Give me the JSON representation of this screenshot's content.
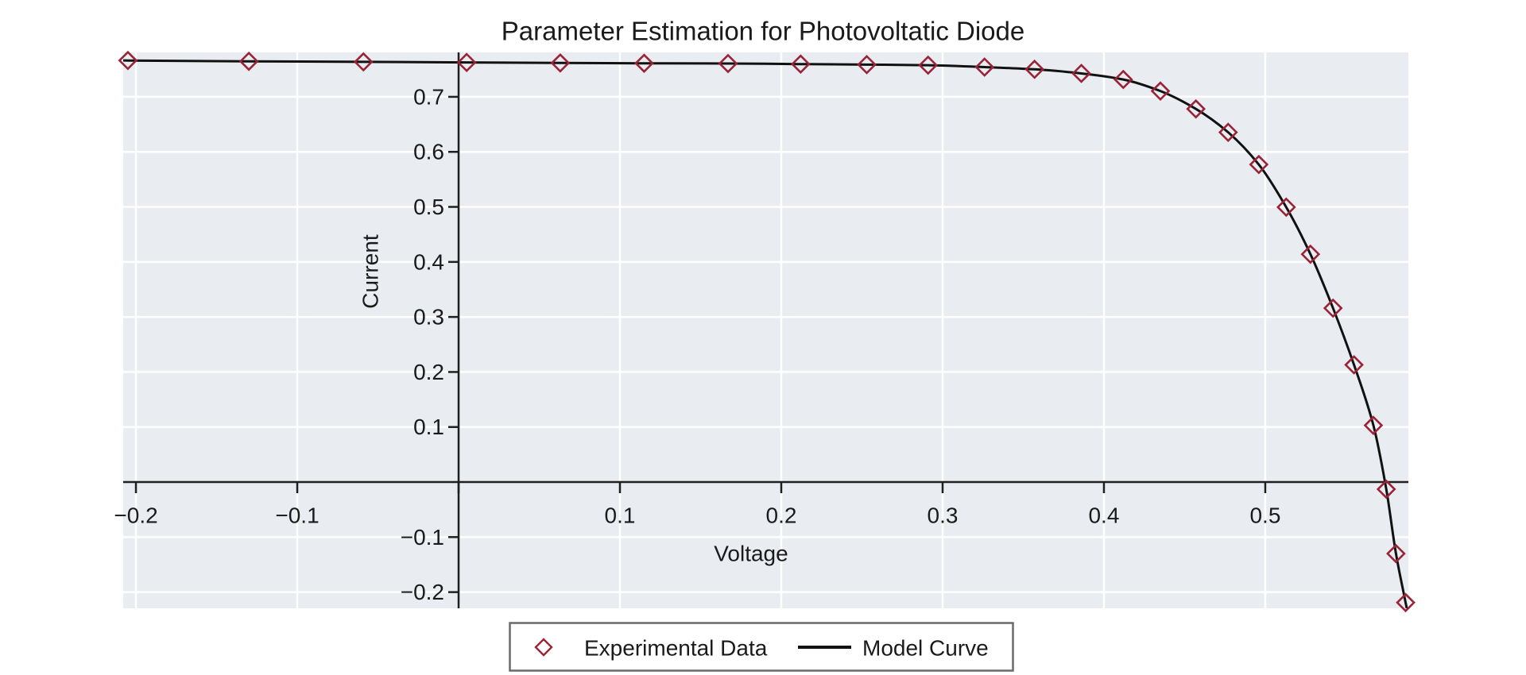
{
  "title": "Parameter Estimation for Photovoltatic Diode",
  "axes": {
    "xlabel": "Voltage",
    "ylabel": "Current"
  },
  "legend": {
    "experimental_label": "Experimental Data",
    "model_label": "Model Curve"
  },
  "colors": {
    "figure_background": "#ffffff",
    "plot_background": "#e9edf1",
    "gridline": "#ffffff",
    "spine": "#1f1f1f",
    "text": "#1a1a1a",
    "marker": "#992437",
    "curve": "#111111",
    "legend_border": "#6a6a6a",
    "legend_background": "#ffffff"
  },
  "chart_data": {
    "type": "scatter",
    "title": "Parameter Estimation for Photovoltatic Diode",
    "xlabel": "Voltage",
    "ylabel": "Current",
    "xlim": [
      -0.2079,
      0.5887
    ],
    "ylim": [
      -0.2294,
      0.7807
    ],
    "grid": true,
    "legend_position": "bottom-center",
    "x_ticks": [
      {
        "v": -0.2,
        "label": "−0.2"
      },
      {
        "v": -0.1,
        "label": "−0.1"
      },
      {
        "v": 0.0,
        "label": ""
      },
      {
        "v": 0.1,
        "label": "0.1"
      },
      {
        "v": 0.2,
        "label": "0.2"
      },
      {
        "v": 0.3,
        "label": "0.3"
      },
      {
        "v": 0.4,
        "label": "0.4"
      },
      {
        "v": 0.5,
        "label": "0.5"
      }
    ],
    "y_ticks": [
      {
        "v": 0.7,
        "label": "0.7"
      },
      {
        "v": 0.6,
        "label": "0.6"
      },
      {
        "v": 0.5,
        "label": "0.5"
      },
      {
        "v": 0.4,
        "label": "0.4"
      },
      {
        "v": 0.3,
        "label": "0.3"
      },
      {
        "v": 0.2,
        "label": "0.2"
      },
      {
        "v": 0.1,
        "label": "0.1"
      },
      {
        "v": -0.1,
        "label": "−0.1"
      },
      {
        "v": -0.2,
        "label": "−0.2"
      }
    ],
    "series": [
      {
        "name": "Experimental Data",
        "type": "scatter",
        "marker": "open-diamond",
        "color": "#992437",
        "points": [
          [
            -0.205,
            0.766
          ],
          [
            -0.13,
            0.7645
          ],
          [
            -0.059,
            0.7635
          ],
          [
            0.005,
            0.7625
          ],
          [
            0.063,
            0.7615
          ],
          [
            0.115,
            0.761
          ],
          [
            0.167,
            0.7605
          ],
          [
            0.212,
            0.7595
          ],
          [
            0.253,
            0.7585
          ],
          [
            0.291,
            0.7575
          ],
          [
            0.326,
            0.754
          ],
          [
            0.357,
            0.75
          ],
          [
            0.386,
            0.7425
          ],
          [
            0.412,
            0.7315
          ],
          [
            0.435,
            0.7105
          ],
          [
            0.457,
            0.678
          ],
          [
            0.477,
            0.6355
          ],
          [
            0.496,
            0.577
          ],
          [
            0.513,
            0.4995
          ],
          [
            0.528,
            0.414
          ],
          [
            0.542,
            0.316
          ],
          [
            0.555,
            0.213
          ],
          [
            0.567,
            0.103
          ],
          [
            0.575,
            -0.013
          ],
          [
            0.581,
            -0.13
          ],
          [
            0.587,
            -0.219
          ]
        ]
      },
      {
        "name": "Model Curve",
        "type": "line",
        "color": "#111111",
        "description": "Smooth diode I-V model curve passing through the experimental points, flat near 0.76 at low voltage and falling steeply past 0.5 V, crossing zero current near V = 0.573",
        "extension_left": [
          -0.2079,
          0.7661
        ],
        "extension_right": [
          0.5877,
          -0.2294
        ]
      }
    ]
  }
}
